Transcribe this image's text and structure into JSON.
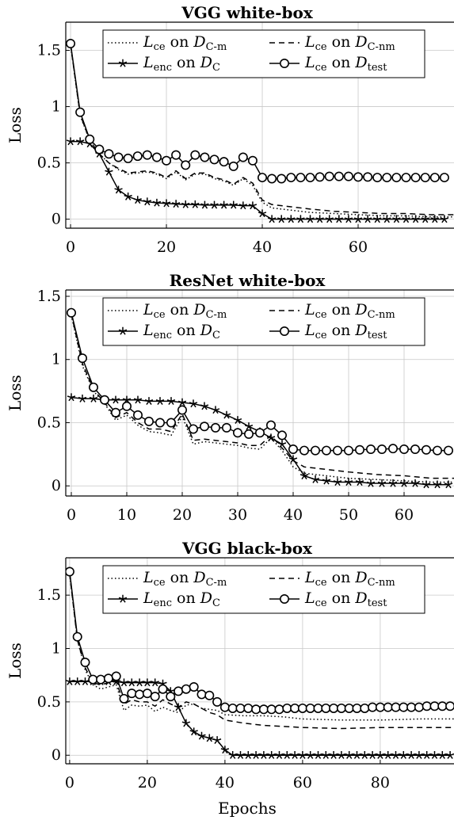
{
  "figure": {
    "xlabel": "Epochs",
    "ylabel": "Loss"
  },
  "legend": {
    "items": [
      {
        "id": "ce_cm",
        "style": "dotted",
        "marker": "none",
        "loss": "L",
        "loss_sub": "ce",
        "on": "on",
        "set": "D",
        "set_sub": "C-m"
      },
      {
        "id": "ce_cnm",
        "style": "dashed",
        "marker": "none",
        "loss": "L",
        "loss_sub": "ce",
        "on": "on",
        "set": "D",
        "set_sub": "C-nm"
      },
      {
        "id": "enc_c",
        "style": "solid",
        "marker": "star",
        "loss": "L",
        "loss_sub": "enc",
        "on": "on",
        "set": "D",
        "set_sub": "C"
      },
      {
        "id": "ce_test",
        "style": "solid",
        "marker": "circle",
        "loss": "L",
        "loss_sub": "ce",
        "on": "on",
        "set": "D",
        "set_sub": "test"
      }
    ]
  },
  "chart_data": [
    {
      "type": "line",
      "title": "VGG white-box",
      "xlabel": "",
      "ylabel": "Loss",
      "xlim": [
        -1,
        80
      ],
      "ylim": [
        -0.08,
        1.75
      ],
      "xticks": [
        0,
        20,
        40,
        60
      ],
      "yticks": [
        0,
        0.5,
        1,
        1.5
      ],
      "ytick_labels": [
        "0",
        "0.5",
        "1",
        "1.5"
      ],
      "grid": true,
      "legend_position": "top",
      "series": [
        {
          "key": "ce_cm",
          "x": [
            0,
            2,
            4,
            6,
            8,
            10,
            12,
            14,
            16,
            18,
            20,
            22,
            24,
            26,
            28,
            30,
            32,
            34,
            36,
            38,
            40,
            42,
            46,
            50,
            55,
            60,
            65,
            70,
            75,
            80
          ],
          "y": [
            1.55,
            0.92,
            0.7,
            0.58,
            0.5,
            0.44,
            0.4,
            0.41,
            0.42,
            0.4,
            0.36,
            0.42,
            0.35,
            0.4,
            0.4,
            0.36,
            0.34,
            0.3,
            0.36,
            0.3,
            0.15,
            0.1,
            0.08,
            0.06,
            0.05,
            0.04,
            0.03,
            0.03,
            0.02,
            0.02
          ]
        },
        {
          "key": "ce_cnm",
          "x": [
            0,
            2,
            4,
            6,
            8,
            10,
            12,
            14,
            16,
            18,
            20,
            22,
            24,
            26,
            28,
            30,
            32,
            34,
            36,
            38,
            40,
            42,
            46,
            50,
            55,
            60,
            65,
            70,
            75,
            80
          ],
          "y": [
            1.55,
            0.93,
            0.7,
            0.58,
            0.5,
            0.45,
            0.41,
            0.42,
            0.43,
            0.41,
            0.37,
            0.43,
            0.36,
            0.41,
            0.41,
            0.37,
            0.35,
            0.31,
            0.37,
            0.32,
            0.17,
            0.13,
            0.11,
            0.09,
            0.07,
            0.06,
            0.05,
            0.05,
            0.04,
            0.04
          ]
        },
        {
          "key": "enc_c",
          "x": [
            0,
            2,
            4,
            6,
            8,
            10,
            12,
            14,
            16,
            18,
            20,
            22,
            24,
            26,
            28,
            30,
            32,
            34,
            36,
            38,
            40,
            42,
            44,
            46,
            48,
            50,
            52,
            54,
            56,
            58,
            60,
            62,
            64,
            66,
            68,
            70,
            72,
            74,
            76,
            78
          ],
          "y": [
            0.69,
            0.69,
            0.67,
            0.58,
            0.42,
            0.26,
            0.2,
            0.17,
            0.155,
            0.145,
            0.14,
            0.135,
            0.13,
            0.13,
            0.125,
            0.125,
            0.125,
            0.125,
            0.12,
            0.12,
            0.05,
            0.0,
            0.0,
            0.0,
            0.0,
            0.0,
            0.0,
            0.0,
            0.0,
            0.0,
            0.0,
            0.0,
            0.0,
            0.0,
            0.0,
            0.0,
            0.0,
            0.0,
            0.0,
            0.0
          ]
        },
        {
          "key": "ce_test",
          "x": [
            0,
            2,
            4,
            6,
            8,
            10,
            12,
            14,
            16,
            18,
            20,
            22,
            24,
            26,
            28,
            30,
            32,
            34,
            36,
            38,
            40,
            42,
            44,
            46,
            48,
            50,
            52,
            54,
            56,
            58,
            60,
            62,
            64,
            66,
            68,
            70,
            72,
            74,
            76,
            78
          ],
          "y": [
            1.56,
            0.95,
            0.71,
            0.62,
            0.58,
            0.55,
            0.54,
            0.56,
            0.57,
            0.55,
            0.52,
            0.57,
            0.48,
            0.57,
            0.55,
            0.53,
            0.51,
            0.47,
            0.55,
            0.52,
            0.37,
            0.36,
            0.36,
            0.37,
            0.37,
            0.37,
            0.375,
            0.38,
            0.38,
            0.38,
            0.375,
            0.375,
            0.37,
            0.37,
            0.37,
            0.37,
            0.37,
            0.37,
            0.37,
            0.37
          ]
        }
      ]
    },
    {
      "type": "line",
      "title": "ResNet white-box",
      "xlabel": "",
      "ylabel": "Loss",
      "xlim": [
        -1,
        69
      ],
      "ylim": [
        -0.08,
        1.55
      ],
      "xticks": [
        0,
        10,
        20,
        30,
        40,
        50,
        60
      ],
      "yticks": [
        0,
        0.5,
        1,
        1.5
      ],
      "ytick_labels": [
        "0",
        "0.5",
        "1",
        "1.5"
      ],
      "grid": true,
      "legend_position": "top",
      "series": [
        {
          "key": "ce_cm",
          "x": [
            0,
            2,
            4,
            6,
            8,
            10,
            12,
            14,
            16,
            18,
            20,
            22,
            24,
            26,
            28,
            30,
            32,
            34,
            36,
            38,
            40,
            42,
            46,
            50,
            55,
            60,
            65,
            69
          ],
          "y": [
            1.35,
            0.95,
            0.75,
            0.65,
            0.52,
            0.56,
            0.48,
            0.43,
            0.42,
            0.4,
            0.55,
            0.33,
            0.35,
            0.34,
            0.33,
            0.32,
            0.3,
            0.29,
            0.38,
            0.28,
            0.15,
            0.1,
            0.08,
            0.06,
            0.05,
            0.04,
            0.03,
            0.03
          ]
        },
        {
          "key": "ce_cnm",
          "x": [
            0,
            2,
            4,
            6,
            8,
            10,
            12,
            14,
            16,
            18,
            20,
            22,
            24,
            26,
            28,
            30,
            32,
            34,
            36,
            38,
            40,
            42,
            46,
            50,
            55,
            60,
            65,
            69
          ],
          "y": [
            1.36,
            0.97,
            0.76,
            0.66,
            0.54,
            0.58,
            0.5,
            0.45,
            0.45,
            0.43,
            0.57,
            0.36,
            0.37,
            0.36,
            0.35,
            0.34,
            0.32,
            0.32,
            0.4,
            0.3,
            0.2,
            0.15,
            0.13,
            0.11,
            0.09,
            0.08,
            0.06,
            0.06
          ]
        },
        {
          "key": "enc_c",
          "x": [
            0,
            2,
            4,
            6,
            8,
            10,
            12,
            14,
            16,
            18,
            20,
            22,
            24,
            26,
            28,
            30,
            32,
            34,
            36,
            38,
            40,
            42,
            44,
            46,
            48,
            50,
            52,
            54,
            56,
            58,
            60,
            62,
            64,
            66,
            68
          ],
          "y": [
            0.7,
            0.69,
            0.69,
            0.68,
            0.68,
            0.68,
            0.68,
            0.67,
            0.67,
            0.67,
            0.66,
            0.65,
            0.63,
            0.6,
            0.56,
            0.52,
            0.47,
            0.43,
            0.38,
            0.33,
            0.21,
            0.08,
            0.05,
            0.04,
            0.03,
            0.03,
            0.03,
            0.02,
            0.02,
            0.02,
            0.02,
            0.02,
            0.01,
            0.01,
            0.01
          ]
        },
        {
          "key": "ce_test",
          "x": [
            0,
            2,
            4,
            6,
            8,
            10,
            12,
            14,
            16,
            18,
            20,
            22,
            24,
            26,
            28,
            30,
            32,
            34,
            36,
            38,
            40,
            42,
            44,
            46,
            48,
            50,
            52,
            54,
            56,
            58,
            60,
            62,
            64,
            66,
            68
          ],
          "y": [
            1.37,
            1.01,
            0.78,
            0.68,
            0.58,
            0.63,
            0.56,
            0.51,
            0.5,
            0.5,
            0.6,
            0.45,
            0.47,
            0.46,
            0.46,
            0.42,
            0.41,
            0.42,
            0.48,
            0.4,
            0.29,
            0.28,
            0.28,
            0.28,
            0.28,
            0.28,
            0.285,
            0.29,
            0.29,
            0.295,
            0.29,
            0.29,
            0.285,
            0.28,
            0.28
          ]
        }
      ]
    },
    {
      "type": "line",
      "title": "VGG black-box",
      "xlabel": "Epochs",
      "ylabel": "Loss",
      "xlim": [
        -1,
        99
      ],
      "ylim": [
        -0.08,
        1.85
      ],
      "xticks": [
        0,
        20,
        40,
        60,
        80
      ],
      "yticks": [
        0,
        0.5,
        1,
        1.5
      ],
      "ytick_labels": [
        "0",
        "0.5",
        "1",
        "1.5"
      ],
      "grid": true,
      "legend_position": "top",
      "series": [
        {
          "key": "ce_cm",
          "x": [
            0,
            2,
            4,
            6,
            8,
            10,
            12,
            14,
            16,
            18,
            20,
            22,
            24,
            26,
            28,
            30,
            32,
            34,
            36,
            38,
            40,
            45,
            50,
            55,
            60,
            70,
            80,
            90,
            99
          ],
          "y": [
            1.7,
            1.08,
            0.8,
            0.66,
            0.62,
            0.64,
            0.66,
            0.42,
            0.47,
            0.46,
            0.47,
            0.41,
            0.45,
            0.42,
            0.4,
            0.47,
            0.48,
            0.44,
            0.43,
            0.42,
            0.38,
            0.37,
            0.37,
            0.36,
            0.34,
            0.33,
            0.33,
            0.34,
            0.34
          ]
        },
        {
          "key": "ce_cnm",
          "x": [
            0,
            2,
            4,
            6,
            8,
            10,
            12,
            14,
            16,
            18,
            20,
            22,
            24,
            26,
            28,
            30,
            32,
            34,
            36,
            38,
            40,
            45,
            50,
            55,
            60,
            70,
            80,
            90,
            99
          ],
          "y": [
            1.7,
            1.08,
            0.82,
            0.68,
            0.66,
            0.68,
            0.69,
            0.48,
            0.52,
            0.5,
            0.5,
            0.46,
            0.52,
            0.48,
            0.45,
            0.5,
            0.48,
            0.44,
            0.4,
            0.38,
            0.33,
            0.3,
            0.28,
            0.27,
            0.26,
            0.25,
            0.26,
            0.26,
            0.26
          ]
        },
        {
          "key": "enc_c",
          "x": [
            0,
            2,
            4,
            6,
            8,
            10,
            12,
            14,
            16,
            18,
            20,
            22,
            24,
            26,
            28,
            30,
            32,
            34,
            36,
            38,
            40,
            42,
            44,
            46,
            48,
            50,
            52,
            54,
            56,
            58,
            60,
            62,
            64,
            66,
            68,
            70,
            72,
            74,
            76,
            78,
            80,
            82,
            84,
            86,
            88,
            90,
            92,
            94,
            96,
            98
          ],
          "y": [
            0.69,
            0.69,
            0.69,
            0.69,
            0.69,
            0.69,
            0.69,
            0.68,
            0.68,
            0.68,
            0.68,
            0.68,
            0.67,
            0.6,
            0.45,
            0.3,
            0.22,
            0.18,
            0.16,
            0.14,
            0.05,
            0.0,
            0.0,
            0.0,
            0.0,
            0.0,
            0.0,
            0.0,
            0.0,
            0.0,
            0.0,
            0.0,
            0.0,
            0.0,
            0.0,
            0.0,
            0.0,
            0.0,
            0.0,
            0.0,
            0.0,
            0.0,
            0.0,
            0.0,
            0.0,
            0.0,
            0.0,
            0.0,
            0.0,
            0.0
          ]
        },
        {
          "key": "ce_test",
          "x": [
            0,
            2,
            4,
            6,
            8,
            10,
            12,
            14,
            16,
            18,
            20,
            22,
            24,
            26,
            28,
            30,
            32,
            34,
            36,
            38,
            40,
            42,
            44,
            46,
            48,
            50,
            52,
            54,
            56,
            58,
            60,
            62,
            64,
            66,
            68,
            70,
            72,
            74,
            76,
            78,
            80,
            82,
            84,
            86,
            88,
            90,
            92,
            94,
            96,
            98
          ],
          "y": [
            1.72,
            1.11,
            0.87,
            0.71,
            0.71,
            0.72,
            0.74,
            0.53,
            0.58,
            0.57,
            0.58,
            0.55,
            0.62,
            0.55,
            0.6,
            0.62,
            0.64,
            0.57,
            0.56,
            0.5,
            0.45,
            0.44,
            0.44,
            0.44,
            0.43,
            0.43,
            0.43,
            0.43,
            0.44,
            0.44,
            0.44,
            0.44,
            0.44,
            0.44,
            0.44,
            0.44,
            0.44,
            0.44,
            0.44,
            0.45,
            0.45,
            0.45,
            0.45,
            0.45,
            0.45,
            0.45,
            0.46,
            0.46,
            0.46,
            0.46
          ]
        }
      ]
    }
  ]
}
